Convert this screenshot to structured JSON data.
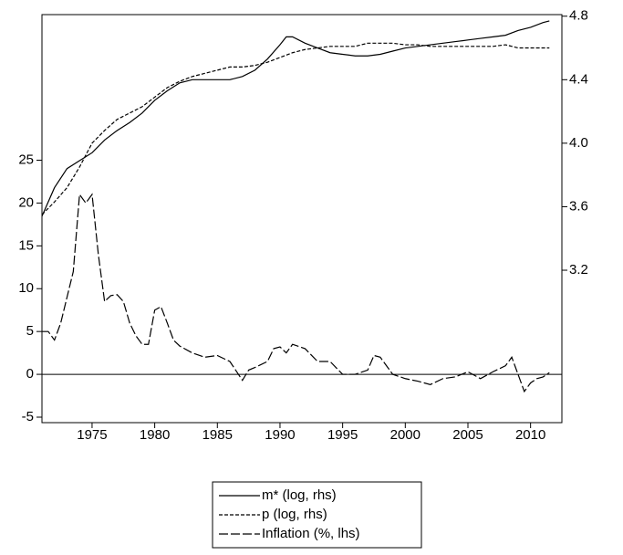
{
  "chart_data": {
    "type": "line",
    "xlim": [
      1971,
      2012.5
    ],
    "xticks": [
      1975,
      1980,
      1985,
      1990,
      1995,
      2000,
      2005,
      2010
    ],
    "ylim": [
      -5.64,
      42.0
    ],
    "yticks": [
      -5,
      0,
      5,
      10,
      15,
      20,
      25
    ],
    "y2lim": [
      2.24,
      4.81
    ],
    "y2ticks": [
      3.2,
      3.6,
      {
        "value": 4,
        "label": "4.0"
      },
      4.4,
      4.8
    ],
    "zero_line": true,
    "legend": "bottom",
    "series": [
      {
        "name": "m* (log, rhs)",
        "color": "#000000",
        "style": "solid",
        "axis": "y2",
        "x": [
          1971,
          1972,
          1973,
          1974,
          1975,
          1976,
          1977,
          1978,
          1979,
          1980,
          1981,
          1982,
          1983,
          1984,
          1985,
          1986,
          1987,
          1988,
          1989,
          1990,
          1990.5,
          1991,
          1992,
          1993,
          1994,
          1995,
          1996,
          1997,
          1998,
          1999,
          2000,
          2001,
          2002,
          2003,
          2004,
          2005,
          2006,
          2007,
          2008,
          2009,
          2010,
          2011,
          2011.5
        ],
        "values": [
          3.54,
          3.72,
          3.84,
          3.89,
          3.94,
          4.02,
          4.08,
          4.13,
          4.19,
          4.27,
          4.33,
          4.38,
          4.4,
          4.4,
          4.4,
          4.4,
          4.42,
          4.46,
          4.53,
          4.62,
          4.67,
          4.67,
          4.63,
          4.6,
          4.57,
          4.56,
          4.55,
          4.55,
          4.56,
          4.58,
          4.6,
          4.61,
          4.62,
          4.63,
          4.64,
          4.65,
          4.66,
          4.67,
          4.68,
          4.71,
          4.73,
          4.76,
          4.77
        ]
      },
      {
        "name": "p  (log, rhs)",
        "color": "#000000",
        "style": "dashed",
        "axis": "y2",
        "x": [
          1971,
          1972,
          1973,
          1974,
          1975,
          1976,
          1977,
          1978,
          1979,
          1980,
          1981,
          1982,
          1983,
          1984,
          1985,
          1986,
          1987,
          1988,
          1989,
          1990,
          1991,
          1992,
          1993,
          1994,
          1995,
          1996,
          1997,
          1998,
          1999,
          2000,
          2001,
          2002,
          2003,
          2004,
          2005,
          2006,
          2007,
          2008,
          2009,
          2010,
          2011,
          2011.5
        ],
        "values": [
          3.55,
          3.63,
          3.72,
          3.85,
          4.0,
          4.08,
          4.15,
          4.19,
          4.23,
          4.29,
          4.35,
          4.39,
          4.42,
          4.44,
          4.46,
          4.48,
          4.48,
          4.49,
          4.51,
          4.54,
          4.57,
          4.59,
          4.6,
          4.61,
          4.61,
          4.61,
          4.63,
          4.63,
          4.63,
          4.62,
          4.62,
          4.61,
          4.61,
          4.61,
          4.61,
          4.61,
          4.61,
          4.62,
          4.6,
          4.6,
          4.6,
          4.6
        ]
      },
      {
        "name": "Inflation (%, lhs)",
        "color": "#000000",
        "style": "longdash",
        "x": [
          1971,
          1971.5,
          1972,
          1972.5,
          1973,
          1973.5,
          1974,
          1974.5,
          1975,
          1975.5,
          1976,
          1976.5,
          1977,
          1977.5,
          1978,
          1978.5,
          1979,
          1979.5,
          1980,
          1980.5,
          1981,
          1981.5,
          1982,
          1983,
          1984,
          1985,
          1986,
          1987,
          1987.5,
          1988,
          1989,
          1989.5,
          1990,
          1990.5,
          1991,
          1992,
          1993,
          1994,
          1995,
          1996,
          1997,
          1997.5,
          1998,
          1999,
          2000,
          2001,
          2002,
          2003,
          2004,
          2005,
          2006,
          2007,
          2008,
          2008.5,
          2009,
          2009.5,
          2010,
          2010.5,
          2011,
          2011.5
        ],
        "values": [
          5,
          5,
          4,
          6,
          9,
          12,
          21,
          20,
          21,
          14,
          8.5,
          9.2,
          9.3,
          8.5,
          6,
          4.5,
          3.5,
          3.5,
          7.5,
          7.9,
          6,
          4,
          3.3,
          2.5,
          2,
          2.2,
          1.5,
          -0.7,
          0.5,
          0.8,
          1.5,
          3,
          3.2,
          2.5,
          3.5,
          3,
          1.5,
          1.5,
          0,
          0,
          0.5,
          2.2,
          2,
          0,
          -0.5,
          -0.8,
          -1.2,
          -0.5,
          -0.3,
          0.3,
          -0.5,
          0.3,
          1,
          2,
          0,
          -2,
          -1,
          -0.5,
          -0.3,
          0.2
        ]
      }
    ]
  }
}
